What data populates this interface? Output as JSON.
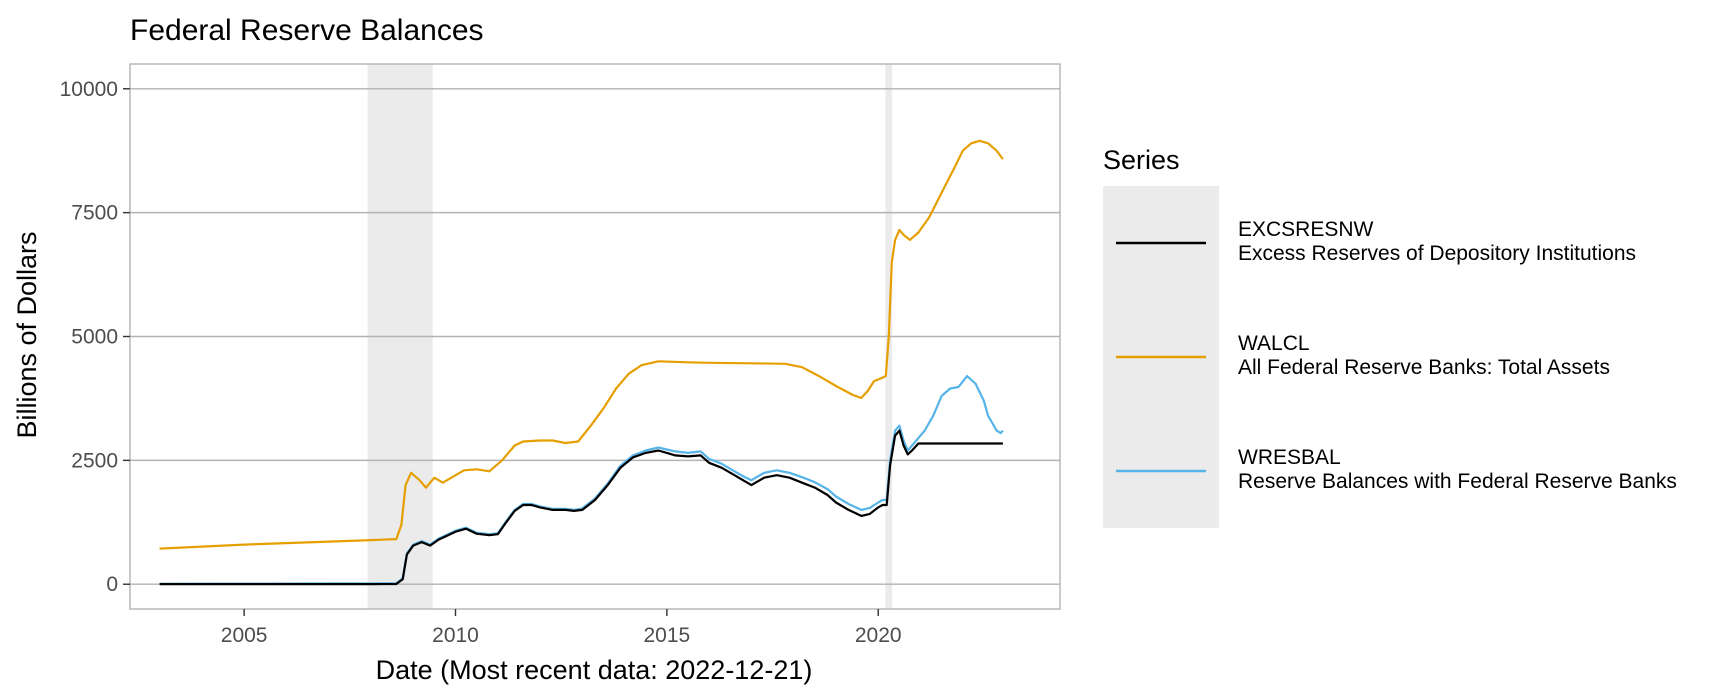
{
  "chart_data": {
    "type": "line",
    "title": "Federal Reserve Balances",
    "xlabel": "Date (Most recent data: 2022-12-21)",
    "ylabel": "Billions of Dollars",
    "xlim": [
      2002.3,
      2024.3
    ],
    "ylim": [
      -500,
      10500
    ],
    "x_ticks": [
      2005,
      2010,
      2015,
      2020
    ],
    "y_ticks": [
      0,
      2500,
      5000,
      7500,
      10000
    ],
    "grid": true,
    "legend": {
      "title": "Series",
      "placement": "right"
    },
    "recessions": [
      {
        "start": 2007.92,
        "end": 2009.46
      },
      {
        "start": 2020.17,
        "end": 2020.33
      }
    ],
    "series": [
      {
        "name": "EXCSRESNW",
        "description": "Excess Reserves of Depository Institutions",
        "color": "#000000",
        "points": [
          [
            2003.0,
            2
          ],
          [
            2005.0,
            2
          ],
          [
            2007.0,
            2
          ],
          [
            2008.0,
            2
          ],
          [
            2008.6,
            5
          ],
          [
            2008.75,
            100
          ],
          [
            2008.85,
            600
          ],
          [
            2009.0,
            780
          ],
          [
            2009.2,
            850
          ],
          [
            2009.4,
            780
          ],
          [
            2009.6,
            900
          ],
          [
            2009.8,
            980
          ],
          [
            2010.0,
            1060
          ],
          [
            2010.25,
            1120
          ],
          [
            2010.5,
            1020
          ],
          [
            2010.8,
            990
          ],
          [
            2011.0,
            1010
          ],
          [
            2011.2,
            1250
          ],
          [
            2011.4,
            1480
          ],
          [
            2011.6,
            1600
          ],
          [
            2011.8,
            1600
          ],
          [
            2012.0,
            1550
          ],
          [
            2012.3,
            1500
          ],
          [
            2012.6,
            1500
          ],
          [
            2012.8,
            1480
          ],
          [
            2013.0,
            1500
          ],
          [
            2013.3,
            1700
          ],
          [
            2013.6,
            2000
          ],
          [
            2013.9,
            2350
          ],
          [
            2014.2,
            2560
          ],
          [
            2014.5,
            2650
          ],
          [
            2014.8,
            2700
          ],
          [
            2015.0,
            2650
          ],
          [
            2015.2,
            2600
          ],
          [
            2015.5,
            2580
          ],
          [
            2015.8,
            2600
          ],
          [
            2016.0,
            2450
          ],
          [
            2016.3,
            2350
          ],
          [
            2016.6,
            2200
          ],
          [
            2016.8,
            2100
          ],
          [
            2017.0,
            2000
          ],
          [
            2017.3,
            2150
          ],
          [
            2017.6,
            2200
          ],
          [
            2017.9,
            2150
          ],
          [
            2018.2,
            2050
          ],
          [
            2018.5,
            1950
          ],
          [
            2018.8,
            1800
          ],
          [
            2019.0,
            1650
          ],
          [
            2019.3,
            1500
          ],
          [
            2019.6,
            1380
          ],
          [
            2019.8,
            1420
          ],
          [
            2020.0,
            1550
          ],
          [
            2020.1,
            1600
          ],
          [
            2020.2,
            1600
          ],
          [
            2020.28,
            2400
          ],
          [
            2020.4,
            3000
          ],
          [
            2020.5,
            3100
          ],
          [
            2020.6,
            2800
          ],
          [
            2020.7,
            2620
          ],
          [
            2020.8,
            2700
          ],
          [
            2020.95,
            2840
          ],
          [
            2021.2,
            2840
          ],
          [
            2022.95,
            2840
          ]
        ]
      },
      {
        "name": "WALCL",
        "description": "All Federal Reserve Banks: Total Assets",
        "color": "#E69F00",
        "points": [
          [
            2003.0,
            720
          ],
          [
            2004.0,
            760
          ],
          [
            2005.0,
            800
          ],
          [
            2006.0,
            830
          ],
          [
            2007.0,
            860
          ],
          [
            2008.0,
            890
          ],
          [
            2008.6,
            910
          ],
          [
            2008.72,
            1200
          ],
          [
            2008.82,
            2000
          ],
          [
            2008.95,
            2250
          ],
          [
            2009.15,
            2100
          ],
          [
            2009.3,
            1950
          ],
          [
            2009.5,
            2150
          ],
          [
            2009.7,
            2050
          ],
          [
            2009.9,
            2150
          ],
          [
            2010.2,
            2300
          ],
          [
            2010.5,
            2320
          ],
          [
            2010.8,
            2280
          ],
          [
            2011.1,
            2500
          ],
          [
            2011.4,
            2800
          ],
          [
            2011.6,
            2880
          ],
          [
            2012.0,
            2900
          ],
          [
            2012.3,
            2900
          ],
          [
            2012.6,
            2850
          ],
          [
            2012.9,
            2880
          ],
          [
            2013.2,
            3200
          ],
          [
            2013.5,
            3550
          ],
          [
            2013.8,
            3950
          ],
          [
            2014.1,
            4250
          ],
          [
            2014.4,
            4420
          ],
          [
            2014.8,
            4500
          ],
          [
            2015.5,
            4480
          ],
          [
            2016.0,
            4470
          ],
          [
            2017.0,
            4460
          ],
          [
            2017.8,
            4450
          ],
          [
            2018.2,
            4380
          ],
          [
            2018.6,
            4200
          ],
          [
            2019.0,
            4000
          ],
          [
            2019.4,
            3820
          ],
          [
            2019.6,
            3760
          ],
          [
            2019.75,
            3900
          ],
          [
            2019.9,
            4100
          ],
          [
            2020.05,
            4150
          ],
          [
            2020.18,
            4200
          ],
          [
            2020.25,
            5000
          ],
          [
            2020.32,
            6500
          ],
          [
            2020.4,
            6950
          ],
          [
            2020.5,
            7150
          ],
          [
            2020.6,
            7050
          ],
          [
            2020.75,
            6950
          ],
          [
            2020.95,
            7100
          ],
          [
            2021.2,
            7400
          ],
          [
            2021.5,
            7900
          ],
          [
            2021.8,
            8400
          ],
          [
            2022.0,
            8750
          ],
          [
            2022.2,
            8900
          ],
          [
            2022.4,
            8950
          ],
          [
            2022.6,
            8900
          ],
          [
            2022.8,
            8750
          ],
          [
            2022.95,
            8580
          ]
        ]
      },
      {
        "name": "WRESBAL",
        "description": "Reserve Balances with Federal Reserve Banks",
        "color": "#56B4E9",
        "points": [
          [
            2003.0,
            10
          ],
          [
            2005.0,
            12
          ],
          [
            2007.0,
            14
          ],
          [
            2008.0,
            15
          ],
          [
            2008.6,
            20
          ],
          [
            2008.75,
            120
          ],
          [
            2008.85,
            620
          ],
          [
            2009.0,
            800
          ],
          [
            2009.2,
            870
          ],
          [
            2009.4,
            800
          ],
          [
            2009.6,
            920
          ],
          [
            2009.8,
            1000
          ],
          [
            2010.0,
            1080
          ],
          [
            2010.25,
            1140
          ],
          [
            2010.5,
            1040
          ],
          [
            2010.8,
            1010
          ],
          [
            2011.0,
            1030
          ],
          [
            2011.2,
            1270
          ],
          [
            2011.4,
            1500
          ],
          [
            2011.6,
            1620
          ],
          [
            2011.8,
            1620
          ],
          [
            2012.0,
            1570
          ],
          [
            2012.3,
            1520
          ],
          [
            2012.6,
            1520
          ],
          [
            2012.8,
            1500
          ],
          [
            2013.0,
            1530
          ],
          [
            2013.3,
            1730
          ],
          [
            2013.6,
            2030
          ],
          [
            2013.9,
            2390
          ],
          [
            2014.2,
            2600
          ],
          [
            2014.5,
            2700
          ],
          [
            2014.8,
            2760
          ],
          [
            2015.0,
            2720
          ],
          [
            2015.2,
            2680
          ],
          [
            2015.5,
            2650
          ],
          [
            2015.8,
            2680
          ],
          [
            2016.0,
            2530
          ],
          [
            2016.3,
            2430
          ],
          [
            2016.6,
            2280
          ],
          [
            2016.8,
            2180
          ],
          [
            2017.0,
            2100
          ],
          [
            2017.3,
            2250
          ],
          [
            2017.6,
            2300
          ],
          [
            2017.9,
            2250
          ],
          [
            2018.2,
            2160
          ],
          [
            2018.5,
            2060
          ],
          [
            2018.8,
            1920
          ],
          [
            2019.0,
            1770
          ],
          [
            2019.3,
            1620
          ],
          [
            2019.6,
            1500
          ],
          [
            2019.8,
            1540
          ],
          [
            2020.0,
            1650
          ],
          [
            2020.1,
            1700
          ],
          [
            2020.2,
            1700
          ],
          [
            2020.28,
            2500
          ],
          [
            2020.4,
            3100
          ],
          [
            2020.5,
            3200
          ],
          [
            2020.6,
            2900
          ],
          [
            2020.7,
            2700
          ],
          [
            2020.9,
            2900
          ],
          [
            2021.1,
            3100
          ],
          [
            2021.3,
            3400
          ],
          [
            2021.5,
            3800
          ],
          [
            2021.7,
            3950
          ],
          [
            2021.9,
            3980
          ],
          [
            2022.1,
            4200
          ],
          [
            2022.3,
            4050
          ],
          [
            2022.5,
            3700
          ],
          [
            2022.6,
            3400
          ],
          [
            2022.7,
            3250
          ],
          [
            2022.8,
            3100
          ],
          [
            2022.9,
            3050
          ],
          [
            2022.95,
            3100
          ]
        ]
      }
    ]
  }
}
